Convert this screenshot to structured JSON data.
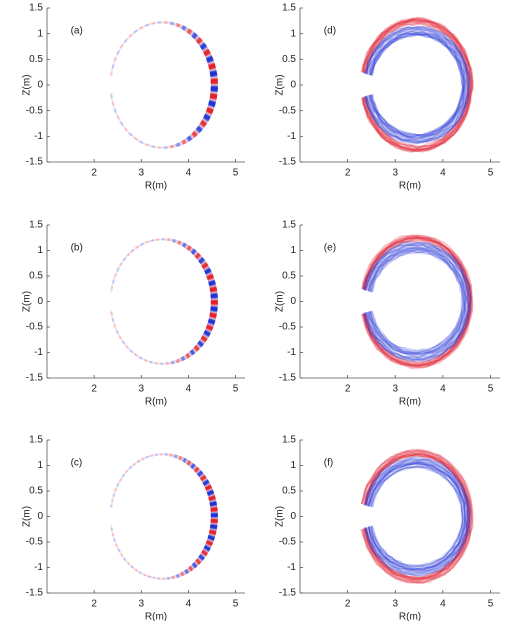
{
  "chart_data": [
    {
      "type": "mode-structure",
      "label": "(a)",
      "xlabel": "R(m)",
      "ylabel": "Z(m)",
      "xlim": [
        1,
        5.2
      ],
      "ylim": [
        -1.5,
        1.5
      ],
      "xticks": [
        2,
        3,
        4,
        5
      ],
      "yticks": [
        1.5,
        1,
        0.5,
        0,
        -0.5,
        -1,
        -1.5
      ]
    },
    {
      "type": "mode-structure-2d",
      "label": "(d)",
      "xlabel": "R(m)",
      "ylabel": "Z(m)",
      "xlim": [
        1,
        5.2
      ],
      "ylim": [
        -1.5,
        1.5
      ],
      "xticks": [
        2,
        3,
        4,
        5
      ],
      "yticks": [
        1.5,
        1,
        0.5,
        0,
        -0.5,
        -1,
        -1.5
      ]
    },
    {
      "type": "mode-structure",
      "label": "(b)",
      "xlabel": "R(m)",
      "ylabel": "Z(m)",
      "xlim": [
        1,
        5.2
      ],
      "ylim": [
        -1.5,
        1.5
      ],
      "xticks": [
        2,
        3,
        4,
        5
      ],
      "yticks": [
        1.5,
        1,
        0.5,
        0,
        -0.5,
        -1,
        -1.5
      ]
    },
    {
      "type": "mode-structure-2d",
      "label": "(e)",
      "xlabel": "R(m)",
      "ylabel": "Z(m)",
      "xlim": [
        1,
        5.2
      ],
      "ylim": [
        -1.5,
        1.5
      ],
      "xticks": [
        2,
        3,
        4,
        5
      ],
      "yticks": [
        1.5,
        1,
        0.5,
        0,
        -0.5,
        -1,
        -1.5
      ]
    },
    {
      "type": "mode-structure",
      "label": "(c)",
      "xlabel": "R(m)",
      "ylabel": "Z(m)",
      "xlim": [
        1,
        5.2
      ],
      "ylim": [
        -1.5,
        1.5
      ],
      "xticks": [
        2,
        3,
        4,
        5
      ],
      "yticks": [
        1.5,
        1,
        0.5,
        0,
        -0.5,
        -1,
        -1.5
      ]
    },
    {
      "type": "mode-structure-2d",
      "label": "(f)",
      "xlabel": "R(m)",
      "ylabel": "Z(m)",
      "xlim": [
        1,
        5.2
      ],
      "ylim": [
        -1.5,
        1.5
      ],
      "xticks": [
        2,
        3,
        4,
        5
      ],
      "yticks": [
        1.5,
        1,
        0.5,
        0,
        -0.5,
        -1,
        -1.5
      ]
    }
  ]
}
